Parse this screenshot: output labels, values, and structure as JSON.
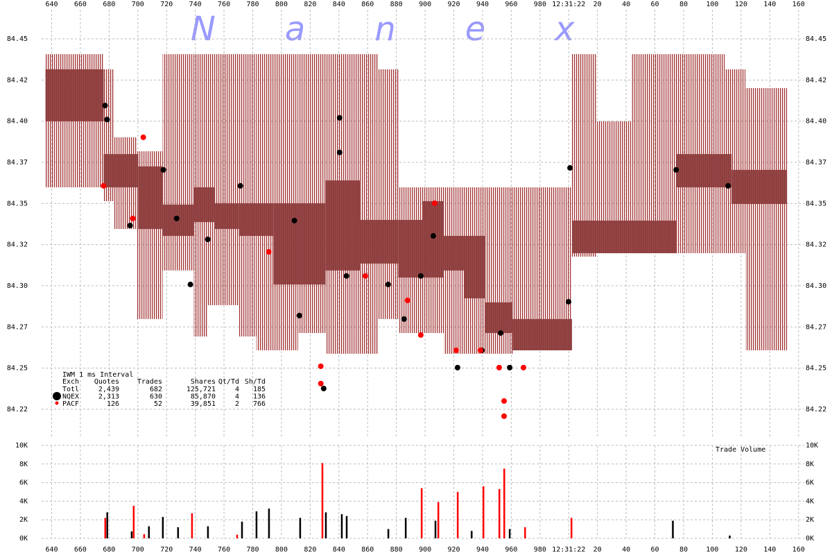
{
  "chart_data": {
    "type": "quote-trade",
    "watermark": "Nanex",
    "xlim": [
      633,
      1164
    ],
    "xticks": [
      640,
      660,
      680,
      700,
      720,
      740,
      760,
      780,
      800,
      820,
      840,
      860,
      880,
      900,
      920,
      940,
      960,
      980,
      {
        "value": 1000,
        "label": "12:31:22"
      },
      {
        "value": 1020,
        "label": "20"
      },
      {
        "value": 1040,
        "label": "40"
      },
      {
        "value": 1060,
        "label": "60"
      },
      {
        "value": 1080,
        "label": "80"
      },
      {
        "value": 1100,
        "label": "100"
      },
      {
        "value": 1120,
        "label": "120"
      },
      {
        "value": 1140,
        "label": "140"
      },
      {
        "value": 1160,
        "label": "160"
      }
    ],
    "ylim": [
      84.2081,
      84.4677
    ],
    "yticks": [
      {
        "value": 84.225,
        "label": "84.22"
      },
      {
        "value": 84.25,
        "label": "84.25"
      },
      {
        "value": 84.275,
        "label": "84.27"
      },
      {
        "value": 84.3,
        "label": "84.30"
      },
      {
        "value": 84.325,
        "label": "84.32"
      },
      {
        "value": 84.35,
        "label": "84.35"
      },
      {
        "value": 84.375,
        "label": "84.37"
      },
      {
        "value": 84.4,
        "label": "84.40"
      },
      {
        "value": 84.425,
        "label": "84.42"
      },
      {
        "value": 84.45,
        "label": "84.45"
      }
    ],
    "grid": true,
    "exchange_quotes": {
      "color": "#a03030",
      "x_start": [
        635.7,
        676.2,
        683.5,
        699.4,
        717.3,
        739,
        748.7,
        770.4,
        782.5,
        811.5,
        830.8,
        867,
        881.5,
        913,
        961,
        1002.3,
        1019.2,
        1043.4,
        1108.6,
        1123
      ],
      "x_end": [
        676.2,
        683.5,
        699.4,
        717.3,
        739,
        748.7,
        770.4,
        782.5,
        811.5,
        830.8,
        867,
        881.5,
        913,
        961,
        1002.3,
        1019.2,
        1043.4,
        1108.6,
        1123,
        1152
      ],
      "high": [
        84.4407,
        84.4315,
        84.3902,
        84.3817,
        84.4407,
        84.4407,
        84.4407,
        84.4407,
        84.4407,
        84.4407,
        84.4407,
        84.4315,
        84.3598,
        84.3598,
        84.3598,
        84.4407,
        84.3999,
        84.4407,
        84.4315,
        84.4201
      ],
      "low": [
        84.3598,
        84.3514,
        84.3345,
        84.2798,
        84.3093,
        84.2692,
        84.2882,
        84.2692,
        84.2608,
        84.2713,
        84.2587,
        84.2798,
        84.2713,
        84.2587,
        84.2608,
        84.3177,
        84.3198,
        84.3198,
        84.3198,
        84.2608
      ]
    },
    "nbbo": {
      "color": "#8b3a3a",
      "x_start": [
        635.7,
        676.2,
        700.4,
        717.3,
        739,
        753.5,
        770.4,
        794.6,
        830.8,
        855,
        881.5,
        898.5,
        913,
        927.4,
        942,
        961,
        1002.3,
        1074.8,
        1113.4
      ],
      "x_end": [
        676.2,
        700.4,
        717.3,
        739,
        753.5,
        770.4,
        794.6,
        830.8,
        855,
        881.5,
        898.5,
        913,
        927.4,
        942,
        961,
        1002.3,
        1074.8,
        1113.4,
        1152
      ],
      "ask": [
        84.4315,
        84.38,
        84.3725,
        84.3493,
        84.3598,
        84.3501,
        84.3501,
        84.3501,
        84.364,
        84.34,
        84.34,
        84.3514,
        84.3303,
        84.3303,
        84.2899,
        84.2798,
        84.3396,
        84.38,
        84.3704
      ],
      "bid": [
        84.3999,
        84.3598,
        84.3345,
        84.3303,
        84.3387,
        84.3345,
        84.3303,
        84.3008,
        84.3093,
        84.3135,
        84.305,
        84.305,
        84.3093,
        84.2924,
        84.2713,
        84.2608,
        84.3198,
        84.3598,
        84.3497
      ]
    },
    "series": [
      {
        "color": "#000000",
        "x": [
          677.2,
          678.6,
          694.6,
          717.8,
          727,
          736.6,
          748.7,
          771.4,
          809,
          812.5,
          829.4,
          840.5,
          840.5,
          845.3,
          874.3,
          885.4,
          897,
          905.7,
          922.6,
          939.5,
          952.6,
          958.9,
          999.9,
          1000.9,
          1074.8,
          1111
        ],
        "values": [
          84.4095,
          84.401,
          84.3366,
          84.3704,
          84.3409,
          84.3008,
          84.3282,
          84.3607,
          84.3396,
          84.2819,
          84.2376,
          84.402,
          84.381,
          84.306,
          84.3008,
          84.2798,
          84.306,
          84.3303,
          84.2503,
          84.2608,
          84.2713,
          84.2503,
          84.2903,
          84.3716,
          84.3704,
          84.3607
        ]
      },
      {
        "color": "#ff0000",
        "x": [
          676.2,
          696.5,
          703.8,
          791.2,
          827.4,
          827.4,
          858.4,
          887.8,
          897,
          906.7,
          921.6,
          938.6,
          951.6,
          955,
          955,
          968.5
        ],
        "values": [
          84.3607,
          84.3409,
          84.3902,
          84.3206,
          84.2511,
          84.2406,
          84.306,
          84.2911,
          84.2701,
          84.3501,
          84.2608,
          84.2608,
          84.2503,
          84.23,
          84.2208,
          84.2503
        ]
      }
    ],
    "stats": {
      "title": "IWM 1 ms Interval",
      "columns": [
        "Exch",
        "Quotes",
        "Trades",
        "Shares",
        "Qt/Td",
        "Sh/Td"
      ],
      "rows": [
        [
          "Totl",
          "2,439",
          "682",
          "125,721",
          "4",
          "185"
        ],
        [
          "NQEX",
          "2,313",
          "630",
          "85,870",
          "4",
          "136"
        ],
        [
          "PACF",
          "126",
          "52",
          "39,851",
          "2",
          "766"
        ]
      ]
    },
    "volume": {
      "label": "Trade Volume",
      "ylim": [
        0,
        10000
      ],
      "yticks": [
        {
          "value": 0,
          "label": "0K"
        },
        {
          "value": 2000,
          "label": "2K"
        },
        {
          "value": 4000,
          "label": "4K"
        },
        {
          "value": 6000,
          "label": "6K"
        },
        {
          "value": 8000,
          "label": "8K"
        },
        {
          "value": 10000,
          "label": "10K"
        }
      ],
      "x": [
        677.2,
        678.6,
        695.6,
        697,
        704.3,
        707.6,
        717.3,
        727.9,
        737.6,
        748.7,
        769,
        772.4,
        782.5,
        791.2,
        812.9,
        828.4,
        830.8,
        841.9,
        845.3,
        874.3,
        886.4,
        897.5,
        907.1,
        909.1,
        922.6,
        932.3,
        940.5,
        951.6,
        955,
        958.8,
        969.5,
        1001.8,
        1072.4,
        1112
      ],
      "values": [
        2200,
        2800,
        750,
        3500,
        450,
        1300,
        2300,
        1200,
        2700,
        1300,
        400,
        1800,
        2900,
        3200,
        2200,
        8100,
        2800,
        2600,
        2400,
        1000,
        2200,
        5400,
        1900,
        3900,
        5000,
        800,
        5600,
        5300,
        7500,
        1000,
        1200,
        2200,
        1900,
        300
      ],
      "colors": [
        "#ff0000",
        "#000000",
        "#000000",
        "#ff0000",
        "#ff0000",
        "#000000",
        "#000000",
        "#000000",
        "#ff0000",
        "#000000",
        "#ff0000",
        "#000000",
        "#000000",
        "#000000",
        "#000000",
        "#ff0000",
        "#000000",
        "#000000",
        "#000000",
        "#000000",
        "#000000",
        "#ff0000",
        "#000000",
        "#ff0000",
        "#ff0000",
        "#000000",
        "#ff0000",
        "#ff0000",
        "#ff0000",
        "#000000",
        "#ff0000",
        "#ff0000",
        "#000000",
        "#000000"
      ]
    }
  }
}
